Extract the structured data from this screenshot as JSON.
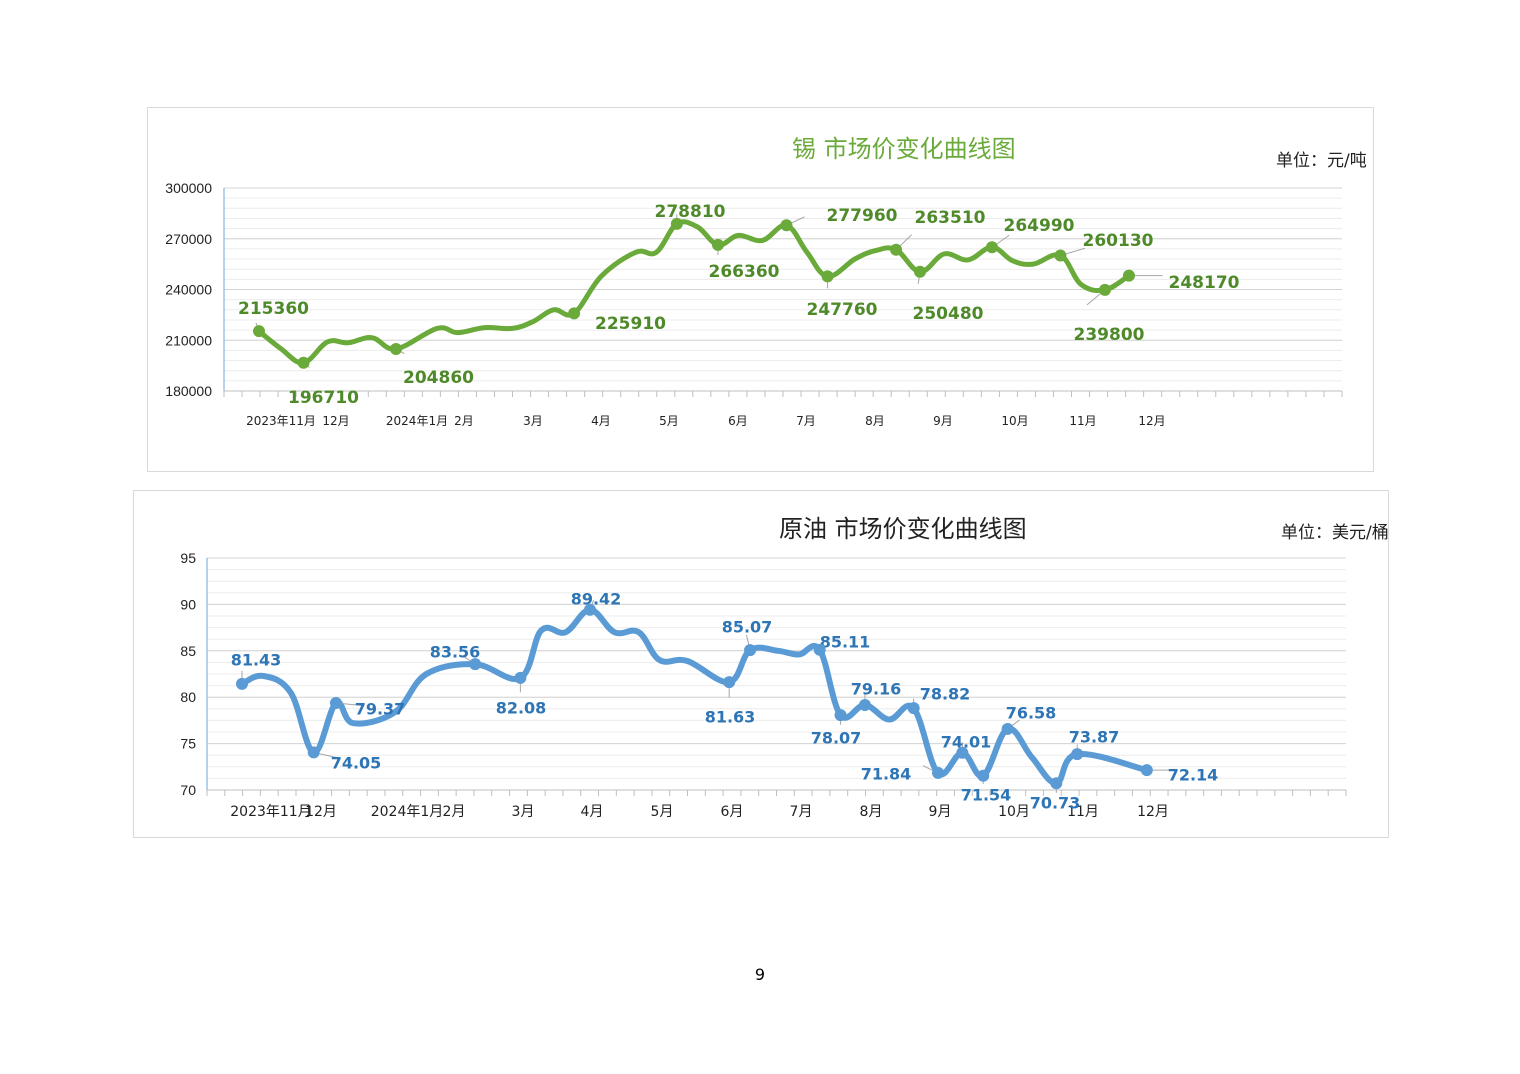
{
  "page_number": "9",
  "chart_data": [
    {
      "type": "line",
      "title": "锡  市场价变化曲线图",
      "unit": "单位：元/吨",
      "color": "#6aaa3a",
      "label_color": "#4e8a2a",
      "ylim": [
        180000,
        300000
      ],
      "yticks": [
        "180000",
        "210000",
        "240000",
        "270000",
        "300000"
      ],
      "ytick_values": [
        180000,
        210000,
        240000,
        270000,
        300000
      ],
      "xtick_labels": [
        "2023年11月",
        "12月",
        "2024年1月",
        "2月",
        "3月",
        "4月",
        "5月",
        "6月",
        "7月",
        "8月",
        "9月",
        "10月",
        "11月",
        "12月"
      ],
      "grid": true,
      "points": [
        {
          "x": 0.0,
          "y": 215360,
          "label": "215360"
        },
        {
          "x": 0.32,
          "y": 205000
        },
        {
          "x": 0.65,
          "y": 196710,
          "label": "196710"
        },
        {
          "x": 1.0,
          "y": 209000
        },
        {
          "x": 1.3,
          "y": 208500
        },
        {
          "x": 1.65,
          "y": 211500
        },
        {
          "x": 2.0,
          "y": 204860,
          "label": "204860"
        },
        {
          "x": 2.6,
          "y": 217000
        },
        {
          "x": 2.9,
          "y": 214500
        },
        {
          "x": 3.3,
          "y": 217500
        },
        {
          "x": 3.7,
          "y": 217000
        },
        {
          "x": 4.0,
          "y": 221000
        },
        {
          "x": 4.3,
          "y": 228000
        },
        {
          "x": 4.6,
          "y": 225910,
          "label": "225910"
        },
        {
          "x": 5.0,
          "y": 248000
        },
        {
          "x": 5.5,
          "y": 262000
        },
        {
          "x": 5.8,
          "y": 262000
        },
        {
          "x": 6.1,
          "y": 278810,
          "label": "278810"
        },
        {
          "x": 6.4,
          "y": 277000
        },
        {
          "x": 6.7,
          "y": 266360,
          "label": "266360"
        },
        {
          "x": 7.0,
          "y": 272000
        },
        {
          "x": 7.35,
          "y": 269000
        },
        {
          "x": 7.7,
          "y": 277960,
          "label": "277960"
        },
        {
          "x": 8.0,
          "y": 262000
        },
        {
          "x": 8.3,
          "y": 247760,
          "label": "247760"
        },
        {
          "x": 8.7,
          "y": 258000
        },
        {
          "x": 9.0,
          "y": 263000
        },
        {
          "x": 9.3,
          "y": 263510,
          "label": "263510"
        },
        {
          "x": 9.65,
          "y": 250480,
          "label": "250480"
        },
        {
          "x": 10.0,
          "y": 261000
        },
        {
          "x": 10.35,
          "y": 257500
        },
        {
          "x": 10.7,
          "y": 264990,
          "label": "264990"
        },
        {
          "x": 11.0,
          "y": 257000
        },
        {
          "x": 11.3,
          "y": 255000
        },
        {
          "x": 11.7,
          "y": 260130,
          "label": "260130"
        },
        {
          "x": 12.0,
          "y": 243000
        },
        {
          "x": 12.35,
          "y": 239800,
          "label": "239800"
        },
        {
          "x": 12.7,
          "y": 248170,
          "label": "248170"
        }
      ]
    },
    {
      "type": "line",
      "title": "原油  市场价变化曲线图",
      "unit": "单位：美元/桶",
      "color": "#5b9bd5",
      "label_color": "#2e75b6",
      "ylim": [
        70,
        95
      ],
      "yticks": [
        "70",
        "75",
        "80",
        "85",
        "90",
        "95"
      ],
      "ytick_values": [
        70,
        75,
        80,
        85,
        90,
        95
      ],
      "xtick_labels": [
        "2023年11月",
        "12月",
        "2024年1月",
        "2月",
        "3月",
        "4月",
        "5月",
        "6月",
        "7月",
        "8月",
        "9月",
        "10月",
        "11月",
        "12月"
      ],
      "grid": true,
      "points": [
        {
          "x": 0.0,
          "y": 81.43,
          "label": "81.43"
        },
        {
          "x": 0.3,
          "y": 82.3
        },
        {
          "x": 0.7,
          "y": 80.5
        },
        {
          "x": 1.03,
          "y": 74.05,
          "label": "74.05"
        },
        {
          "x": 1.35,
          "y": 79.37,
          "label": "79.37"
        },
        {
          "x": 1.6,
          "y": 77.2
        },
        {
          "x": 2.2,
          "y": 78.4
        },
        {
          "x": 2.65,
          "y": 82.5
        },
        {
          "x": 3.35,
          "y": 83.56,
          "label": "83.56"
        },
        {
          "x": 4.0,
          "y": 82.08,
          "label": "82.08"
        },
        {
          "x": 4.3,
          "y": 87.2
        },
        {
          "x": 4.65,
          "y": 87.0
        },
        {
          "x": 5.0,
          "y": 89.42,
          "label": "89.42"
        },
        {
          "x": 5.35,
          "y": 87.0
        },
        {
          "x": 5.7,
          "y": 87.0
        },
        {
          "x": 6.0,
          "y": 84.0
        },
        {
          "x": 6.4,
          "y": 83.9
        },
        {
          "x": 7.0,
          "y": 81.63,
          "label": "81.63"
        },
        {
          "x": 7.3,
          "y": 85.07,
          "label": "85.07"
        },
        {
          "x": 7.7,
          "y": 85.0
        },
        {
          "x": 8.0,
          "y": 84.6
        },
        {
          "x": 8.3,
          "y": 85.11,
          "label": "85.11"
        },
        {
          "x": 8.6,
          "y": 78.07,
          "label": "78.07"
        },
        {
          "x": 8.95,
          "y": 79.16,
          "label": "79.16"
        },
        {
          "x": 9.3,
          "y": 77.6
        },
        {
          "x": 9.65,
          "y": 78.82,
          "label": "78.82"
        },
        {
          "x": 10.0,
          "y": 71.84,
          "label": "71.84"
        },
        {
          "x": 10.35,
          "y": 74.01,
          "label": "74.01"
        },
        {
          "x": 10.65,
          "y": 71.54,
          "label": "71.54"
        },
        {
          "x": 11.0,
          "y": 76.58,
          "label": "76.58"
        },
        {
          "x": 11.35,
          "y": 73.5
        },
        {
          "x": 11.7,
          "y": 70.73,
          "label": "70.73"
        },
        {
          "x": 12.0,
          "y": 73.87,
          "label": "73.87"
        },
        {
          "x": 13.0,
          "y": 72.14,
          "label": "72.14"
        }
      ]
    }
  ]
}
